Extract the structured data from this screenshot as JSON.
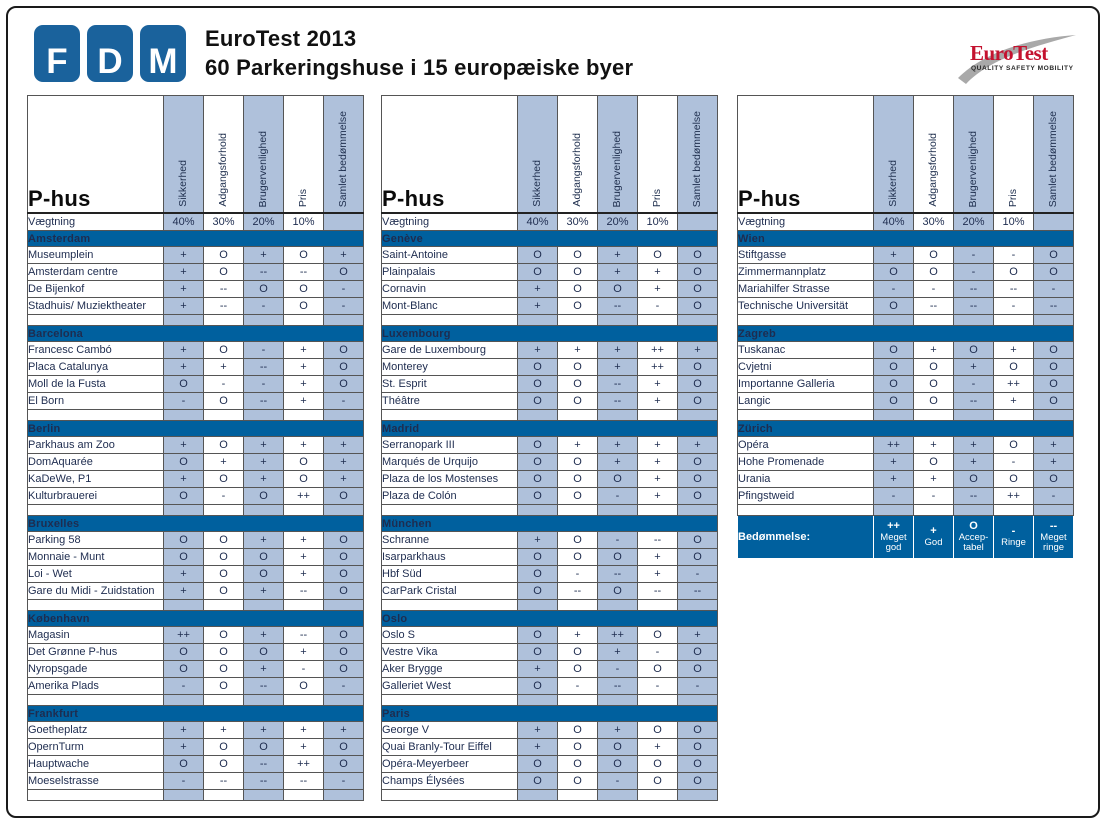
{
  "header": {
    "fdm_letters": [
      "F",
      "D",
      "M"
    ],
    "title_line1": "EuroTest 2013",
    "title_line2": "60 Parkeringshuse i 15 europæiske byer",
    "eurotest": {
      "name": "EuroTest",
      "tagline": "QUALITY SAFETY MOBILITY"
    }
  },
  "colors": {
    "dark_blue": "#00609e",
    "light_blue": "#afc1db",
    "logo_blue": "#1a629c",
    "eurotest_red": "#c4122f"
  },
  "rating_symbols": [
    "++",
    "+",
    "O",
    "-",
    "--"
  ],
  "table": {
    "row_header_label": "P-hus",
    "criteria": [
      "Sikkerhed",
      "Adgangsforhold",
      "Brugervenlighed",
      "Pris",
      "Samlet bedømmelse"
    ],
    "weight_label": "Vægtning",
    "weights": [
      "40%",
      "30%",
      "20%",
      "10%",
      ""
    ],
    "legend": {
      "label": "Bedømmelse:",
      "items": [
        {
          "symbol": "++",
          "label": "Meget god"
        },
        {
          "symbol": "+",
          "label": "God"
        },
        {
          "symbol": "O",
          "label": "Accep- tabel"
        },
        {
          "symbol": "-",
          "label": "Ringe"
        },
        {
          "symbol": "--",
          "label": "Meget ringe"
        }
      ]
    },
    "columns": [
      {
        "sections": [
          {
            "city": "Amsterdam",
            "rows": [
              {
                "name": "Museumplein",
                "values": [
                  "+",
                  "O",
                  "+",
                  "O",
                  "+"
                ]
              },
              {
                "name": "Amsterdam centre",
                "values": [
                  "+",
                  "O",
                  "--",
                  "--",
                  "O"
                ]
              },
              {
                "name": "De Bijenkof",
                "values": [
                  "+",
                  "--",
                  "O",
                  "O",
                  "-"
                ]
              },
              {
                "name": "Stadhuis/ Muziektheater",
                "values": [
                  "+",
                  "--",
                  "-",
                  "O",
                  "-"
                ]
              }
            ]
          },
          {
            "city": "Barcelona",
            "rows": [
              {
                "name": "Francesc Cambó",
                "values": [
                  "+",
                  "O",
                  "-",
                  "+",
                  "O"
                ]
              },
              {
                "name": "Placa Catalunya",
                "values": [
                  "+",
                  "+",
                  "--",
                  "+",
                  "O"
                ]
              },
              {
                "name": "Moll de la Fusta",
                "values": [
                  "O",
                  "-",
                  "-",
                  "+",
                  "O"
                ]
              },
              {
                "name": "El Born",
                "values": [
                  "-",
                  "O",
                  "--",
                  "+",
                  "-"
                ]
              }
            ]
          },
          {
            "city": "Berlin",
            "rows": [
              {
                "name": "Parkhaus am Zoo",
                "values": [
                  "+",
                  "O",
                  "+",
                  "+",
                  "+"
                ]
              },
              {
                "name": "DomAquarée",
                "values": [
                  "O",
                  "+",
                  "+",
                  "O",
                  "+"
                ]
              },
              {
                "name": "KaDeWe, P1",
                "values": [
                  "+",
                  "O",
                  "+",
                  "O",
                  "+"
                ]
              },
              {
                "name": "Kulturbrauerei",
                "values": [
                  "O",
                  "-",
                  "O",
                  "++",
                  "O"
                ]
              }
            ]
          },
          {
            "city": "Bruxelles",
            "rows": [
              {
                "name": "Parking 58",
                "values": [
                  "O",
                  "O",
                  "+",
                  "+",
                  "O"
                ]
              },
              {
                "name": "Monnaie - Munt",
                "values": [
                  "O",
                  "O",
                  "O",
                  "+",
                  "O"
                ]
              },
              {
                "name": "Loi - Wet",
                "values": [
                  "+",
                  "O",
                  "O",
                  "+",
                  "O"
                ]
              },
              {
                "name": "Gare du Midi - Zuidstation",
                "values": [
                  "+",
                  "O",
                  "+",
                  "--",
                  "O"
                ]
              }
            ]
          },
          {
            "city": "København",
            "rows": [
              {
                "name": "Magasin",
                "values": [
                  "++",
                  "O",
                  "+",
                  "--",
                  "O"
                ]
              },
              {
                "name": "Det Grønne P-hus",
                "values": [
                  "O",
                  "O",
                  "O",
                  "+",
                  "O"
                ]
              },
              {
                "name": "Nyropsgade",
                "values": [
                  "O",
                  "O",
                  "+",
                  "-",
                  "O"
                ]
              },
              {
                "name": "Amerika Plads",
                "values": [
                  "-",
                  "O",
                  "--",
                  "O",
                  "-"
                ]
              }
            ]
          },
          {
            "city": "Frankfurt",
            "rows": [
              {
                "name": "Goetheplatz",
                "values": [
                  "+",
                  "+",
                  "+",
                  "+",
                  "+"
                ]
              },
              {
                "name": "OpernTurm",
                "values": [
                  "+",
                  "O",
                  "O",
                  "+",
                  "O"
                ]
              },
              {
                "name": "Hauptwache",
                "values": [
                  "O",
                  "O",
                  "--",
                  "++",
                  "O"
                ]
              },
              {
                "name": "Moeselstrasse",
                "values": [
                  "-",
                  "--",
                  "--",
                  "--",
                  "-"
                ]
              }
            ]
          }
        ]
      },
      {
        "sections": [
          {
            "city": "Genève",
            "rows": [
              {
                "name": "Saint-Antoine",
                "values": [
                  "O",
                  "O",
                  "+",
                  "O",
                  "O"
                ]
              },
              {
                "name": "Plainpalais",
                "values": [
                  "O",
                  "O",
                  "+",
                  "+",
                  "O"
                ]
              },
              {
                "name": "Cornavin",
                "values": [
                  "+",
                  "O",
                  "O",
                  "+",
                  "O"
                ]
              },
              {
                "name": "Mont-Blanc",
                "values": [
                  "+",
                  "O",
                  "--",
                  "-",
                  "O"
                ]
              }
            ]
          },
          {
            "city": "Luxembourg",
            "rows": [
              {
                "name": "Gare de Luxembourg",
                "values": [
                  "+",
                  "+",
                  "+",
                  "++",
                  "+"
                ]
              },
              {
                "name": "Monterey",
                "values": [
                  "O",
                  "O",
                  "+",
                  "++",
                  "O"
                ]
              },
              {
                "name": "St. Esprit",
                "values": [
                  "O",
                  "O",
                  "--",
                  "+",
                  "O"
                ]
              },
              {
                "name": "Théâtre",
                "values": [
                  "O",
                  "O",
                  "--",
                  "+",
                  "O"
                ]
              }
            ]
          },
          {
            "city": "Madrid",
            "rows": [
              {
                "name": "Serranopark III",
                "values": [
                  "O",
                  "+",
                  "+",
                  "+",
                  "+"
                ]
              },
              {
                "name": "Marqués de Urquijo",
                "values": [
                  "O",
                  "O",
                  "+",
                  "+",
                  "O"
                ]
              },
              {
                "name": "Plaza de los Mostenses",
                "values": [
                  "O",
                  "O",
                  "O",
                  "+",
                  "O"
                ]
              },
              {
                "name": "Plaza de Colón",
                "values": [
                  "O",
                  "O",
                  "-",
                  "+",
                  "O"
                ]
              }
            ]
          },
          {
            "city": "München",
            "rows": [
              {
                "name": "Schranne",
                "values": [
                  "+",
                  "O",
                  "-",
                  "--",
                  "O"
                ]
              },
              {
                "name": "Isarparkhaus",
                "values": [
                  "O",
                  "O",
                  "O",
                  "+",
                  "O"
                ]
              },
              {
                "name": "Hbf Süd",
                "values": [
                  "O",
                  "-",
                  "--",
                  "+",
                  "-"
                ]
              },
              {
                "name": "CarPark Cristal",
                "values": [
                  "O",
                  "--",
                  "O",
                  "--",
                  "--"
                ]
              }
            ]
          },
          {
            "city": "Oslo",
            "rows": [
              {
                "name": "Oslo S",
                "values": [
                  "O",
                  "+",
                  "++",
                  "O",
                  "+"
                ]
              },
              {
                "name": "Vestre Vika",
                "values": [
                  "O",
                  "O",
                  "+",
                  "-",
                  "O"
                ]
              },
              {
                "name": "Aker Brygge",
                "values": [
                  "+",
                  "O",
                  "-",
                  "O",
                  "O"
                ]
              },
              {
                "name": "Galleriet West",
                "values": [
                  "O",
                  "-",
                  "--",
                  "-",
                  "-"
                ]
              }
            ]
          },
          {
            "city": "Paris",
            "rows": [
              {
                "name": "George V",
                "values": [
                  "+",
                  "O",
                  "+",
                  "O",
                  "O"
                ]
              },
              {
                "name": "Quai Branly-Tour Eiffel",
                "values": [
                  "+",
                  "O",
                  "O",
                  "+",
                  "O"
                ]
              },
              {
                "name": "Opéra-Meyerbeer",
                "values": [
                  "O",
                  "O",
                  "O",
                  "O",
                  "O"
                ]
              },
              {
                "name": "Champs Élysées",
                "values": [
                  "O",
                  "O",
                  "-",
                  "O",
                  "O"
                ]
              }
            ]
          }
        ]
      },
      {
        "has_legend": true,
        "sections": [
          {
            "city": "Wien",
            "rows": [
              {
                "name": "Stiftgasse",
                "values": [
                  "+",
                  "O",
                  "-",
                  "-",
                  "O"
                ]
              },
              {
                "name": "Zimmermannplatz",
                "values": [
                  "O",
                  "O",
                  "-",
                  "O",
                  "O"
                ]
              },
              {
                "name": "Mariahilfer Strasse",
                "values": [
                  "-",
                  "-",
                  "--",
                  "--",
                  "-"
                ]
              },
              {
                "name": "Technische Universität",
                "values": [
                  "O",
                  "--",
                  "--",
                  "-",
                  "--"
                ]
              }
            ]
          },
          {
            "city": "Zagreb",
            "rows": [
              {
                "name": "Tuskanac",
                "values": [
                  "O",
                  "+",
                  "O",
                  "+",
                  "O"
                ]
              },
              {
                "name": "Cvjetni",
                "values": [
                  "O",
                  "O",
                  "+",
                  "O",
                  "O"
                ]
              },
              {
                "name": "Importanne Galleria",
                "values": [
                  "O",
                  "O",
                  "-",
                  "++",
                  "O"
                ]
              },
              {
                "name": "Langic",
                "values": [
                  "O",
                  "O",
                  "--",
                  "+",
                  "O"
                ]
              }
            ]
          },
          {
            "city": "Zürich",
            "rows": [
              {
                "name": "Opéra",
                "values": [
                  "++",
                  "+",
                  "+",
                  "O",
                  "+"
                ]
              },
              {
                "name": "Hohe Promenade",
                "values": [
                  "+",
                  "O",
                  "+",
                  "-",
                  "+"
                ]
              },
              {
                "name": "Urania",
                "values": [
                  "+",
                  "+",
                  "O",
                  "O",
                  "O"
                ]
              },
              {
                "name": "Pfingstweid",
                "values": [
                  "-",
                  "-",
                  "--",
                  "++",
                  "-"
                ]
              }
            ]
          }
        ]
      }
    ]
  }
}
